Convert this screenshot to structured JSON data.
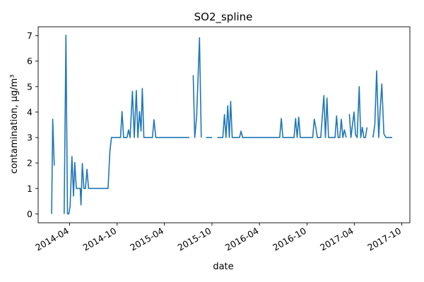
{
  "chart_data": {
    "type": "line",
    "title": "SO2_spline",
    "xlabel": "date",
    "ylabel": "contamination, µg/m³",
    "color": "#1f77b4",
    "grid": false,
    "legend": "none",
    "xlim": [
      "2013-12-01",
      "2017-11-01"
    ],
    "ylim": [
      -0.35,
      7.35
    ],
    "yticks": [
      0,
      1,
      2,
      3,
      4,
      5,
      6,
      7
    ],
    "xticks": [
      "2014-04",
      "2014-10",
      "2015-04",
      "2015-10",
      "2016-04",
      "2016-10",
      "2017-04",
      "2017-10"
    ],
    "segments": [
      [
        [
          "2014-01-22",
          0.0
        ],
        [
          "2014-01-26",
          3.72
        ],
        [
          "2014-02-01",
          1.9
        ]
      ],
      [
        [
          "2014-03-11",
          0.0
        ],
        [
          "2014-03-18",
          7.02
        ],
        [
          "2014-03-24",
          0.0
        ],
        [
          "2014-03-29",
          0.0
        ],
        [
          "2014-04-03",
          0.3
        ],
        [
          "2014-04-10",
          2.25
        ],
        [
          "2014-04-16",
          0.7
        ],
        [
          "2014-04-21",
          2.02
        ],
        [
          "2014-04-27",
          1.0
        ],
        [
          "2014-05-06",
          1.0
        ],
        [
          "2014-05-12",
          1.0
        ],
        [
          "2014-05-15",
          0.35
        ],
        [
          "2014-05-20",
          1.98
        ],
        [
          "2014-05-26",
          1.0
        ],
        [
          "2014-06-01",
          1.0
        ],
        [
          "2014-06-07",
          1.75
        ],
        [
          "2014-06-13",
          1.0
        ],
        [
          "2014-07-01",
          1.0
        ],
        [
          "2014-07-20",
          1.0
        ],
        [
          "2014-08-10",
          1.0
        ],
        [
          "2014-08-27",
          1.0
        ],
        [
          "2014-09-03",
          2.45
        ],
        [
          "2014-09-09",
          3.0
        ],
        [
          "2014-09-20",
          3.0
        ],
        [
          "2014-10-02",
          3.0
        ],
        [
          "2014-10-14",
          3.0
        ],
        [
          "2014-10-20",
          4.02
        ],
        [
          "2014-10-26",
          3.0
        ],
        [
          "2014-11-08",
          3.0
        ],
        [
          "2014-11-14",
          3.3
        ],
        [
          "2014-11-20",
          3.0
        ],
        [
          "2014-11-29",
          4.82
        ],
        [
          "2014-12-06",
          3.0
        ],
        [
          "2014-12-14",
          4.85
        ],
        [
          "2014-12-20",
          3.0
        ],
        [
          "2014-12-26",
          4.02
        ],
        [
          "2015-01-01",
          3.25
        ],
        [
          "2015-01-06",
          4.93
        ],
        [
          "2015-01-12",
          3.0
        ],
        [
          "2015-01-20",
          3.0
        ],
        [
          "2015-02-04",
          3.0
        ],
        [
          "2015-02-14",
          3.0
        ],
        [
          "2015-02-20",
          3.7
        ],
        [
          "2015-02-27",
          3.0
        ],
        [
          "2015-03-20",
          3.0
        ],
        [
          "2015-04-15",
          3.0
        ],
        [
          "2015-05-10",
          3.0
        ],
        [
          "2015-06-10",
          3.0
        ],
        [
          "2015-07-06",
          3.0
        ]
      ],
      [
        [
          "2015-07-21",
          5.45
        ],
        [
          "2015-07-27",
          3.0
        ],
        [
          "2015-08-03",
          3.8
        ],
        [
          "2015-08-14",
          6.92
        ],
        [
          "2015-08-21",
          3.0
        ]
      ],
      [
        [
          "2015-09-08",
          3.0
        ],
        [
          "2015-09-20",
          3.0
        ],
        [
          "2015-10-02",
          3.0
        ]
      ],
      [
        [
          "2015-10-22",
          3.0
        ],
        [
          "2015-11-03",
          3.0
        ],
        [
          "2015-11-12",
          3.0
        ],
        [
          "2015-11-18",
          3.9
        ],
        [
          "2015-11-24",
          3.0
        ],
        [
          "2015-12-01",
          4.25
        ],
        [
          "2015-12-07",
          3.0
        ],
        [
          "2015-12-12",
          4.42
        ],
        [
          "2015-12-18",
          3.0
        ],
        [
          "2016-01-03",
          3.0
        ],
        [
          "2016-01-15",
          3.0
        ],
        [
          "2016-01-21",
          3.25
        ],
        [
          "2016-01-27",
          3.0
        ],
        [
          "2016-02-20",
          3.0
        ],
        [
          "2016-03-20",
          3.0
        ],
        [
          "2016-04-20",
          3.0
        ],
        [
          "2016-05-20",
          3.0
        ],
        [
          "2016-06-18",
          3.0
        ],
        [
          "2016-06-24",
          3.75
        ],
        [
          "2016-06-30",
          3.0
        ],
        [
          "2016-07-15",
          3.0
        ],
        [
          "2016-08-12",
          3.0
        ],
        [
          "2016-08-18",
          3.75
        ],
        [
          "2016-08-24",
          3.0
        ],
        [
          "2016-08-30",
          3.8
        ],
        [
          "2016-09-05",
          3.0
        ],
        [
          "2016-09-20",
          3.0
        ],
        [
          "2016-10-08",
          3.0
        ],
        [
          "2016-10-23",
          3.0
        ],
        [
          "2016-10-29",
          3.72
        ],
        [
          "2016-11-04",
          3.4
        ],
        [
          "2016-11-10",
          3.0
        ],
        [
          "2016-11-23",
          3.0
        ],
        [
          "2016-12-05",
          4.65
        ],
        [
          "2016-12-11",
          3.0
        ],
        [
          "2016-12-17",
          4.55
        ],
        [
          "2016-12-23",
          3.0
        ],
        [
          "2017-01-05",
          3.0
        ],
        [
          "2017-01-17",
          3.0
        ],
        [
          "2017-01-23",
          3.85
        ],
        [
          "2017-01-29",
          3.0
        ],
        [
          "2017-02-04",
          3.0
        ],
        [
          "2017-02-10",
          3.72
        ],
        [
          "2017-02-16",
          3.0
        ],
        [
          "2017-02-22",
          3.3
        ],
        [
          "2017-03-01",
          3.0
        ]
      ],
      [
        [
          "2017-03-13",
          3.92
        ],
        [
          "2017-03-19",
          3.0
        ],
        [
          "2017-03-25",
          3.5
        ],
        [
          "2017-03-31",
          4.0
        ],
        [
          "2017-04-06",
          3.1
        ],
        [
          "2017-04-12",
          3.0
        ],
        [
          "2017-04-20",
          5.0
        ],
        [
          "2017-04-26",
          3.0
        ],
        [
          "2017-05-02",
          3.4
        ],
        [
          "2017-05-08",
          3.0
        ],
        [
          "2017-05-14",
          3.0
        ],
        [
          "2017-05-20",
          3.4
        ]
      ],
      [
        [
          "2017-06-12",
          3.0
        ],
        [
          "2017-06-19",
          3.5
        ],
        [
          "2017-06-26",
          5.62
        ],
        [
          "2017-07-04",
          3.0
        ],
        [
          "2017-07-10",
          4.15
        ],
        [
          "2017-07-16",
          5.1
        ],
        [
          "2017-07-24",
          3.15
        ],
        [
          "2017-08-01",
          3.0
        ],
        [
          "2017-08-13",
          3.0
        ],
        [
          "2017-08-25",
          3.0
        ]
      ]
    ]
  }
}
